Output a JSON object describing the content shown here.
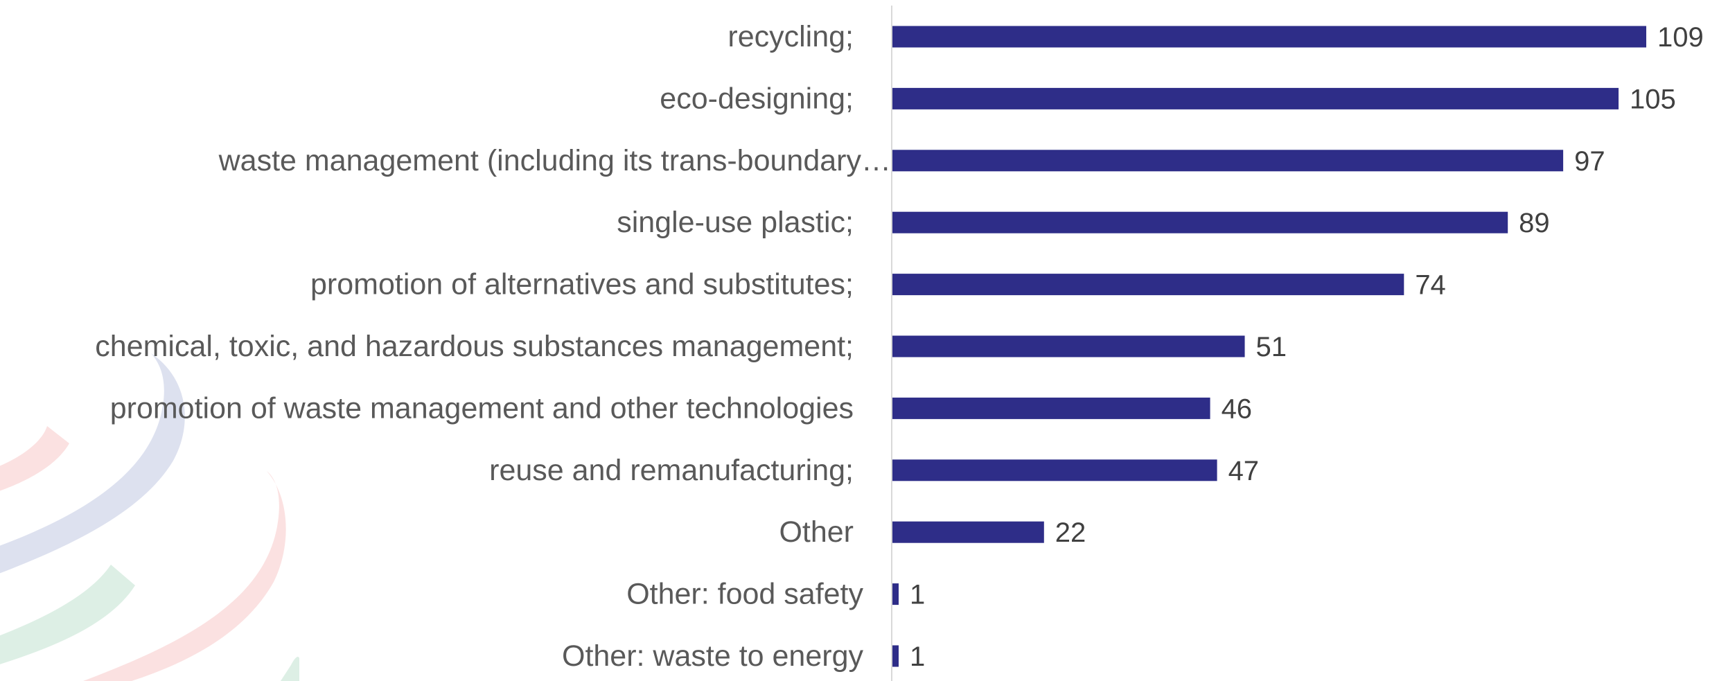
{
  "colors": {
    "bar": "#2e2d88",
    "axis": "#d9d9d9",
    "category_text": "#595959",
    "value_text": "#404040",
    "watermark_blue": "#dde1ef",
    "watermark_red": "#fbe1e1",
    "watermark_green": "#ddefe5"
  },
  "decor": {
    "watermark": "wto-logo-watermark"
  },
  "chart_data": {
    "type": "bar",
    "orientation": "horizontal",
    "categories": [
      "recycling;",
      "eco-designing;",
      "waste management (including its trans-boundary…",
      "single-use plastic;",
      "promotion of alternatives and substitutes;",
      "chemical, toxic, and hazardous substances management;",
      "promotion of waste management and other technologies",
      "reuse and remanufacturing;",
      "Other",
      "Other: food safety",
      "Other: waste to energy"
    ],
    "values": [
      109,
      105,
      97,
      89,
      74,
      51,
      46,
      47,
      22,
      1,
      1
    ],
    "title": "",
    "xlabel": "",
    "ylabel": "",
    "xlim": [
      0,
      109
    ],
    "grid": false,
    "legend": "none",
    "data_labels": true
  }
}
